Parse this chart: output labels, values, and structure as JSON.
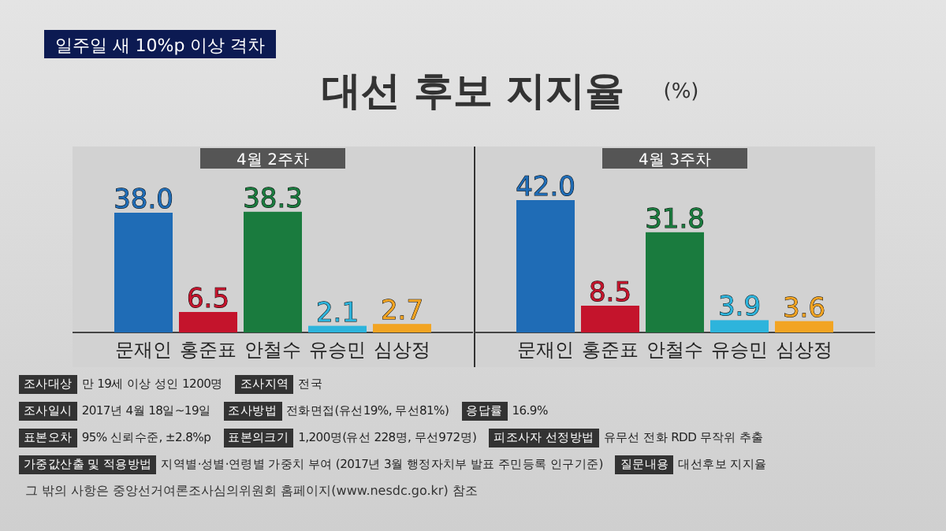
{
  "chart_data": [
    {
      "type": "bar",
      "title": "대선 후보 지지율",
      "ylabel": "(%)",
      "subtitle": "4월 2주차",
      "categories": [
        "문재인",
        "홍준표",
        "안철수",
        "유승민",
        "심상정"
      ],
      "values": [
        38.0,
        6.5,
        38.3,
        2.1,
        2.7
      ],
      "value_labels": [
        "38.0",
        "6.5",
        "38.3",
        "2.1",
        "2.7"
      ],
      "colors": [
        "#1f6cb6",
        "#c4142c",
        "#1a7b3e",
        "#2db4dc",
        "#f2a422"
      ],
      "annotations": [
        "일주일 새 10%p 이상 격차",
        "그 밖의 사항은 중앙선거여론조사심의위원회 홈페이지(www.nesdc.go.kr) 참조",
        "조사대상",
        "만 19세 이상 성인 1200명",
        "조사지역",
        "전국",
        "조사일시",
        "2017년 4월 18일~19일",
        "조사방법",
        "전화면접(유선19%, 무선81%)",
        "응답률",
        "16.9%",
        "표본오차",
        "95% 신뢰수준, ±2.8%p",
        "표본의크기",
        "1,200명(유선 228명, 무선972명)",
        "피조사자 선정방법",
        "유무선 전화 RDD 무작위 추출",
        "가중값산출 및 적용방법",
        "지역별·성별·연령별 가중치 부여 (2017년 3월 행정자치부 발표 주민등록 인구기준)",
        "질문내용",
        "대선후보 지지율"
      ]
    },
    {
      "type": "bar",
      "subtitle": "4월 3주차",
      "categories": [
        "문재인",
        "홍준표",
        "안철수",
        "유승민",
        "심상정"
      ],
      "values": [
        42.0,
        8.5,
        31.8,
        3.9,
        3.6
      ],
      "value_labels": [
        "42.0",
        "8.5",
        "31.8",
        "3.9",
        "3.6"
      ],
      "colors": [
        "#1f6cb6",
        "#c4142c",
        "#1a7b3e",
        "#2db4dc",
        "#f2a422"
      ]
    }
  ]
}
